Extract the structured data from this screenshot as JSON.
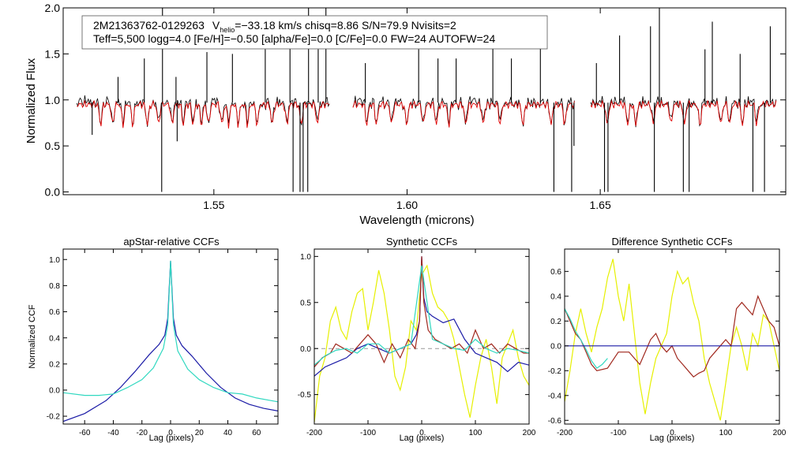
{
  "top": {
    "info_line1": {
      "star": "2M21363762-0129263",
      "vhelio_prefix": "V",
      "vhelio_sub": "helio",
      "vhelio_rest": "=−33.18 km/s  chisq=8.86  S/N=79.9  Nvisits=2"
    },
    "info_line2": "Teff=5,500 logg=4.0 [Fe/H]=−0.50 [alpha/Fe]=0.0 [C/Fe]=0.0 FW=24 AUTOFW=24"
  },
  "chart_data": [
    {
      "id": "spectrum",
      "type": "line",
      "title": "",
      "xlabel": "Wavelength (microns)",
      "ylabel": "Normalized Flux",
      "xlim": [
        1.511,
        1.698
      ],
      "ylim": [
        -0.03,
        2.0
      ],
      "xticks": [
        1.55,
        1.6,
        1.65
      ],
      "xtick_labels": [
        "1.55",
        "1.60",
        "1.65"
      ],
      "yticks": [
        0.0,
        0.5,
        1.0,
        1.5,
        2.0
      ],
      "ytick_labels": [
        "0.0",
        "0.5",
        "1.0",
        "1.5",
        "2.0"
      ],
      "detectors": [
        [
          1.5145,
          1.58
        ],
        [
          1.586,
          1.6435
        ],
        [
          1.6475,
          1.6955
        ]
      ],
      "series": [
        {
          "name": "observed",
          "color": "#000000",
          "baseline": 0.97
        },
        {
          "name": "model",
          "color": "#e00000",
          "baseline": 0.95
        }
      ],
      "absorption_lines": [
        1.5207,
        1.5238,
        1.5265,
        1.529,
        1.5328,
        1.5357,
        1.5392,
        1.5421,
        1.5446,
        1.5468,
        1.5486,
        1.5521,
        1.5538,
        1.5563,
        1.5587,
        1.5612,
        1.5651,
        1.5689,
        1.5726,
        1.5768,
        1.5896,
        1.5921,
        1.596,
        1.5999,
        1.6042,
        1.6076,
        1.6108,
        1.6152,
        1.6197,
        1.6241,
        1.63,
        1.6373,
        1.6408,
        1.6518,
        1.6571,
        1.6592,
        1.6637,
        1.6683,
        1.6718,
        1.6758,
        1.6812,
        1.6835,
        1.6868,
        1.6905
      ],
      "sky_lines": [
        [
          1.5185,
          0.62
        ],
        [
          1.5252,
          1.25
        ],
        [
          1.532,
          1.45
        ],
        [
          1.5365,
          0.0
        ],
        [
          1.5367,
          2.0
        ],
        [
          1.5402,
          1.25
        ],
        [
          1.5405,
          0.55
        ],
        [
          1.5482,
          1.52
        ],
        [
          1.5548,
          1.5
        ],
        [
          1.5633,
          1.55
        ],
        [
          1.5697,
          1.62
        ],
        [
          1.5705,
          0.0
        ],
        [
          1.5723,
          0.0
        ],
        [
          1.5731,
          0.0
        ],
        [
          1.5743,
          0.0
        ],
        [
          1.5745,
          2.0
        ],
        [
          1.577,
          1.55
        ],
        [
          1.579,
          2.0
        ],
        [
          1.5892,
          1.4
        ],
        [
          1.603,
          1.55
        ],
        [
          1.608,
          1.45
        ],
        [
          1.6127,
          1.45
        ],
        [
          1.6222,
          1.8
        ],
        [
          1.627,
          1.45
        ],
        [
          1.6345,
          1.7
        ],
        [
          1.638,
          0.0
        ],
        [
          1.6426,
          0.0
        ],
        [
          1.6432,
          0.5
        ],
        [
          1.649,
          1.4
        ],
        [
          1.6511,
          0.0
        ],
        [
          1.652,
          0.0
        ],
        [
          1.655,
          1.7
        ],
        [
          1.663,
          1.8
        ],
        [
          1.664,
          0.0
        ],
        [
          1.6653,
          2.0
        ],
        [
          1.6715,
          0.0
        ],
        [
          1.673,
          0.0
        ],
        [
          1.6771,
          1.55
        ],
        [
          1.679,
          1.85
        ],
        [
          1.6862,
          1.5
        ],
        [
          1.6895,
          0.0
        ],
        [
          1.6925,
          0.0
        ],
        [
          1.694,
          1.8
        ]
      ]
    },
    {
      "id": "apstar_ccf",
      "type": "line",
      "title": "apStar-relative CCFs",
      "xlabel": "Lag (pixels)",
      "ylabel": "Normalized CCF",
      "xlim": [
        -75,
        75
      ],
      "ylim": [
        -0.26,
        1.08
      ],
      "xticks": [
        -60,
        -40,
        -20,
        0,
        20,
        40,
        60
      ],
      "xtick_labels": [
        "-60",
        "-40",
        "-20",
        "0",
        "20",
        "40",
        "60"
      ],
      "yticks": [
        -0.2,
        0.0,
        0.2,
        0.4,
        0.6,
        0.8,
        1.0
      ],
      "ytick_labels": [
        "-0.2",
        "0.0",
        "0.2",
        "0.4",
        "0.6",
        "0.8",
        "1.0"
      ],
      "series": [
        {
          "name": "ccf1",
          "color": "#1a1aa6",
          "x": [
            -75,
            -60,
            -45,
            -35,
            -25,
            -15,
            -8,
            -4,
            -2,
            0,
            2,
            4,
            8,
            15,
            25,
            35,
            45,
            55,
            65,
            75
          ],
          "y": [
            -0.24,
            -0.18,
            -0.08,
            0.02,
            0.14,
            0.27,
            0.35,
            0.42,
            0.55,
            0.99,
            0.55,
            0.42,
            0.34,
            0.26,
            0.13,
            0.02,
            -0.06,
            -0.11,
            -0.14,
            -0.16
          ]
        },
        {
          "name": "ccf2",
          "color": "#30d8c0",
          "x": [
            -75,
            -60,
            -50,
            -40,
            -30,
            -20,
            -12,
            -5,
            -2,
            0,
            2,
            5,
            12,
            20,
            30,
            40,
            50,
            60,
            70,
            75
          ],
          "y": [
            -0.02,
            -0.04,
            -0.04,
            -0.03,
            0.02,
            0.08,
            0.17,
            0.32,
            0.5,
            0.99,
            0.5,
            0.3,
            0.16,
            0.08,
            0.02,
            -0.02,
            -0.03,
            -0.06,
            -0.08,
            -0.09
          ]
        }
      ]
    },
    {
      "id": "synthetic_ccf",
      "type": "line",
      "title": "Synthetic CCFs",
      "xlabel": "Lag (pixels)",
      "ylabel": "",
      "xlim": [
        -200,
        200
      ],
      "ylim": [
        -0.82,
        1.08
      ],
      "xticks": [
        -200,
        -100,
        0,
        100,
        200
      ],
      "xtick_labels": [
        "-200",
        "-100",
        "0",
        "100",
        "200"
      ],
      "yticks": [
        -0.5,
        0.0,
        0.5,
        1.0
      ],
      "ytick_labels": [
        "-0.5",
        "0.0",
        "0.5",
        "1.0"
      ],
      "zero_line": true,
      "series": [
        {
          "name": "yellow",
          "color": "#e6f000",
          "x": [
            -200,
            -190,
            -180,
            -170,
            -160,
            -150,
            -140,
            -130,
            -120,
            -110,
            -100,
            -90,
            -80,
            -70,
            -60,
            -50,
            -40,
            -30,
            -20,
            -10,
            0,
            10,
            20,
            30,
            40,
            50,
            60,
            70,
            80,
            90,
            100,
            110,
            120,
            130,
            140,
            150,
            160,
            170,
            180,
            190,
            200
          ],
          "y": [
            -0.8,
            -0.3,
            -0.1,
            0.3,
            0.45,
            0.2,
            0.1,
            0.4,
            0.6,
            0.65,
            0.2,
            0.5,
            0.85,
            0.6,
            0.2,
            -0.3,
            -0.45,
            -0.2,
            0.3,
            0.2,
            0.8,
            0.9,
            0.6,
            0.45,
            0.4,
            0.3,
            0.1,
            -0.2,
            -0.5,
            -0.75,
            -0.4,
            -0.1,
            0.1,
            -0.2,
            -0.6,
            -0.1,
            0.05,
            0.2,
            -0.1,
            -0.3,
            -0.4
          ]
        },
        {
          "name": "blue",
          "color": "#1a1aa6",
          "x": [
            -200,
            -190,
            -180,
            -160,
            -140,
            -120,
            -100,
            -80,
            -60,
            -40,
            -20,
            -10,
            -4,
            0,
            4,
            10,
            20,
            40,
            60,
            80,
            100,
            120,
            140,
            160,
            180,
            200
          ],
          "y": [
            -0.3,
            -0.25,
            -0.2,
            -0.15,
            -0.1,
            0.0,
            0.05,
            0.0,
            -0.05,
            0.0,
            0.05,
            0.15,
            0.3,
            1.0,
            0.55,
            0.4,
            0.35,
            0.28,
            0.32,
            0.1,
            -0.05,
            -0.1,
            -0.15,
            -0.25,
            -0.15,
            -0.18
          ]
        },
        {
          "name": "brown",
          "color": "#a0281e",
          "x": [
            -200,
            -185,
            -170,
            -160,
            -145,
            -130,
            -115,
            -100,
            -85,
            -70,
            -55,
            -40,
            -25,
            -12,
            -4,
            0,
            4,
            12,
            25,
            40,
            55,
            70,
            85,
            100,
            115,
            130,
            145,
            160,
            175,
            190,
            200
          ],
          "y": [
            -0.2,
            -0.1,
            -0.05,
            0.05,
            0.0,
            -0.05,
            0.05,
            0.15,
            0.05,
            -0.15,
            0.05,
            -0.1,
            0.1,
            0.0,
            0.3,
            1.0,
            0.5,
            0.2,
            0.1,
            0.05,
            0.0,
            0.05,
            -0.05,
            0.2,
            0.0,
            0.05,
            -0.05,
            0.05,
            0.0,
            -0.05,
            -0.05
          ]
        },
        {
          "name": "cyan",
          "color": "#30d8c0",
          "x": [
            -200,
            -180,
            -160,
            -140,
            -120,
            -100,
            -80,
            -60,
            -40,
            -20,
            0,
            20,
            40,
            60,
            80,
            100,
            120,
            140,
            160,
            180,
            200
          ],
          "y": [
            -0.18,
            -0.08,
            -0.02,
            0.0,
            -0.05,
            0.05,
            0.05,
            -0.05,
            0.0,
            0.05,
            0.9,
            0.1,
            0.05,
            0.0,
            -0.02,
            0.1,
            0.0,
            -0.05,
            0.0,
            -0.02,
            -0.05
          ]
        }
      ]
    },
    {
      "id": "difference_ccf",
      "type": "line",
      "title": "Difference Synthetic CCFs",
      "xlabel": "Lag (pixels)",
      "ylabel": "",
      "xlim": [
        -200,
        200
      ],
      "ylim": [
        -0.63,
        0.78
      ],
      "xticks": [
        -200,
        -100,
        0,
        100,
        200
      ],
      "xtick_labels": [
        "-200",
        "-100",
        "0",
        "100",
        "200"
      ],
      "yticks": [
        -0.6,
        -0.4,
        -0.2,
        0.0,
        0.2,
        0.4,
        0.6
      ],
      "ytick_labels": [
        "-0.6",
        "-0.4",
        "-0.2",
        "0.0",
        "0.2",
        "0.4",
        "0.6"
      ],
      "series": [
        {
          "name": "yellow",
          "color": "#e6f000",
          "x": [
            -200,
            -190,
            -180,
            -170,
            -160,
            -150,
            -140,
            -130,
            -120,
            -110,
            -100,
            -90,
            -80,
            -70,
            -60,
            -50,
            -40,
            -30,
            -20,
            -10,
            0,
            10,
            20,
            30,
            40,
            50,
            60,
            70,
            80,
            90,
            100,
            110,
            120,
            130,
            140,
            150,
            160,
            170,
            180,
            190,
            200
          ],
          "y": [
            -0.45,
            -0.2,
            0.1,
            0.3,
            0.1,
            -0.05,
            0.15,
            0.3,
            0.55,
            0.7,
            0.4,
            0.2,
            0.5,
            0.1,
            -0.3,
            -0.55,
            -0.3,
            -0.1,
            0.0,
            0.1,
            0.4,
            0.6,
            0.5,
            0.55,
            0.35,
            0.2,
            -0.1,
            -0.3,
            -0.45,
            -0.6,
            -0.3,
            0.0,
            0.15,
            0.0,
            -0.2,
            0.1,
            0.0,
            0.25,
            0.2,
            0.0,
            -0.2
          ]
        },
        {
          "name": "brown",
          "color": "#a0281e",
          "x": [
            -200,
            -190,
            -180,
            -170,
            -160,
            -150,
            -140,
            -120,
            -100,
            -80,
            -70,
            -60,
            -50,
            -40,
            -30,
            -20,
            -10,
            0,
            10,
            20,
            30,
            40,
            50,
            60,
            70,
            80,
            90,
            100,
            110,
            120,
            130,
            140,
            150,
            160,
            170,
            180,
            190,
            200
          ],
          "y": [
            0.3,
            0.2,
            0.1,
            0.05,
            -0.05,
            -0.15,
            -0.2,
            -0.18,
            -0.05,
            -0.05,
            -0.1,
            -0.15,
            -0.05,
            0.05,
            0.1,
            0.0,
            -0.05,
            0.0,
            -0.1,
            -0.15,
            -0.2,
            -0.25,
            -0.22,
            -0.2,
            -0.1,
            -0.05,
            0.0,
            0.05,
            0.0,
            0.3,
            0.35,
            0.3,
            0.25,
            0.4,
            0.3,
            0.2,
            0.15,
            0.0
          ]
        },
        {
          "name": "cyan",
          "color": "#30d8c0",
          "x": [
            -200,
            -190,
            -180,
            -170,
            -160,
            -150,
            -140,
            -130,
            -120
          ],
          "y": [
            0.3,
            0.22,
            0.12,
            0.05,
            -0.03,
            -0.12,
            -0.18,
            -0.15,
            -0.1
          ]
        },
        {
          "name": "blue",
          "color": "#1a1aa6",
          "x": [
            -200,
            200
          ],
          "y": [
            0.0,
            0.0
          ]
        }
      ]
    }
  ]
}
